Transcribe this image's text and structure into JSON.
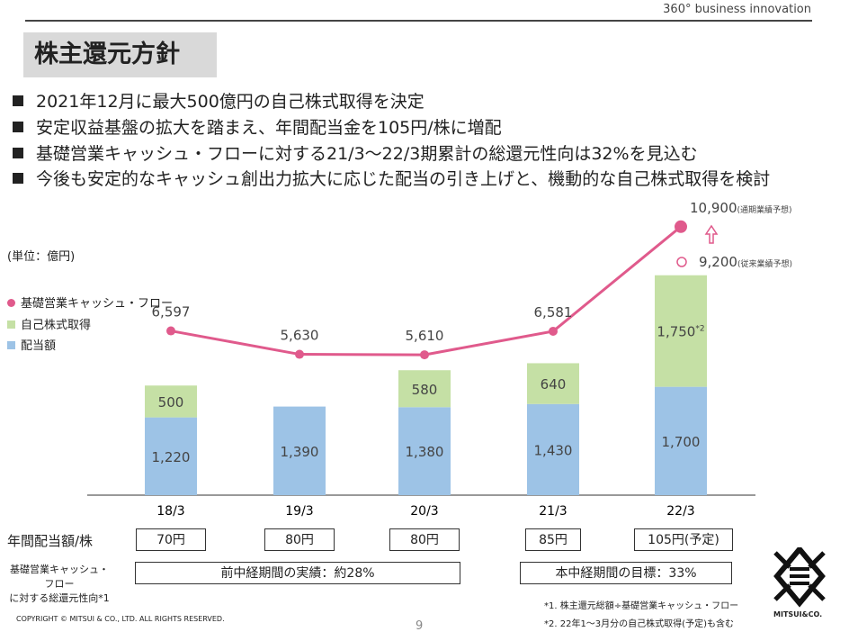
{
  "header": {
    "tagline": "360° business innovation",
    "title": "株主還元方針"
  },
  "bullets": [
    "2021年12月に最大500億円の自己株式取得を決定",
    "安定収益基盤の拡大を踏まえ、年間配当金を105円/株に増配",
    "基礎営業キャッシュ・フローに対する21/3～22/3期累計の総還元性向は32%を見込む",
    "今後も安定的なキャッシュ創出力拡大に応じた配当の引き上げと、機動的な自己株式取得を検討"
  ],
  "chart_data": {
    "type": "bar+line",
    "unit_label": "(単位：億円)",
    "categories": [
      "18/3",
      "19/3",
      "20/3",
      "21/3",
      "22/3"
    ],
    "series": [
      {
        "name": "配当額",
        "type": "stacked-bar",
        "color": "#9dc3e6",
        "values": [
          1220,
          1390,
          1380,
          1430,
          1700
        ],
        "labels": [
          "1,220",
          "1,390",
          "1,380",
          "1,430",
          "1,700"
        ]
      },
      {
        "name": "自己株式取得",
        "type": "stacked-bar",
        "color": "#c5e0a5",
        "values": [
          500,
          null,
          580,
          640,
          1750
        ],
        "labels": [
          "500",
          "",
          "580",
          "640",
          "1,750*2"
        ]
      },
      {
        "name": "基礎営業キャッシュ・フロー",
        "type": "line",
        "color": "#e05a8c",
        "values": [
          6597,
          5630,
          5610,
          6581,
          10900
        ],
        "labels": [
          "6,597",
          "5,630",
          "5,610",
          "6,581",
          "10,900"
        ]
      }
    ],
    "annotations": {
      "forecast_value": "10,900",
      "forecast_note": "(通期業績予想)",
      "previous_value": "9,200",
      "previous_note": "(従来業績予想)",
      "previous_forecast": 9200
    },
    "legend_placement": "left"
  },
  "dividend": {
    "label": "年間配当額/株",
    "values": [
      "70円",
      "80円",
      "80円",
      "85円",
      "105円(予定)"
    ]
  },
  "payout": {
    "label1": "基礎営業キャッシュ・フロー",
    "label2": "に対する総還元性向*1",
    "prev": "前中経期間の実績：約28%",
    "target": "本中経期間の目標：33%"
  },
  "notes": [
    "*1. 株主還元総額÷基礎営業キャッシュ・フロー",
    "*2. 22年1～3月分の自己株式取得(予定)も含む"
  ],
  "footer": {
    "copyright": "COPYRIGHT © MITSUI & CO., LTD. ALL RIGHTS RESERVED.",
    "page": "9",
    "logo_text": "MITSUI&CO."
  }
}
